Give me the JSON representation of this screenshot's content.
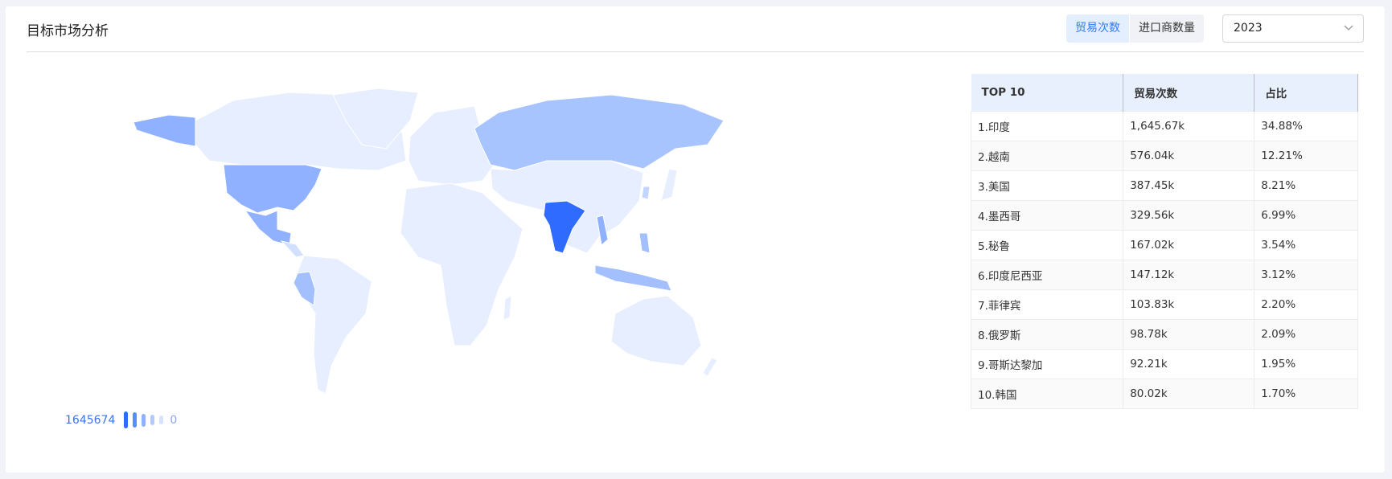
{
  "header": {
    "title": "目标市场分析",
    "tabs": [
      {
        "label": "贸易次数",
        "active": true
      },
      {
        "label": "进口商数量",
        "active": false
      }
    ],
    "year_select": {
      "value": "2023",
      "icon": "chevron-down-icon"
    }
  },
  "colors": {
    "accent": "#2f7bf5",
    "max": "#2f6bff",
    "high": "#8fb1ff",
    "mid": "#a8c4ff",
    "low": "#e6eeff"
  },
  "table": {
    "headers": [
      "TOP 10",
      "贸易次数",
      "占比"
    ],
    "rows": [
      [
        "1.印度",
        "1,645.67k",
        "34.88%"
      ],
      [
        "2.越南",
        "576.04k",
        "12.21%"
      ],
      [
        "3.美国",
        "387.45k",
        "8.21%"
      ],
      [
        "4.墨西哥",
        "329.56k",
        "6.99%"
      ],
      [
        "5.秘鲁",
        "167.02k",
        "3.54%"
      ],
      [
        "6.印度尼西亚",
        "147.12k",
        "3.12%"
      ],
      [
        "7.菲律宾",
        "103.83k",
        "2.20%"
      ],
      [
        "8.俄罗斯",
        "98.78k",
        "2.09%"
      ],
      [
        "9.哥斯达黎加",
        "92.21k",
        "1.95%"
      ],
      [
        "10.韩国",
        "80.02k",
        "1.70%"
      ]
    ]
  },
  "legend": {
    "max": "1645674",
    "min": "0"
  }
}
